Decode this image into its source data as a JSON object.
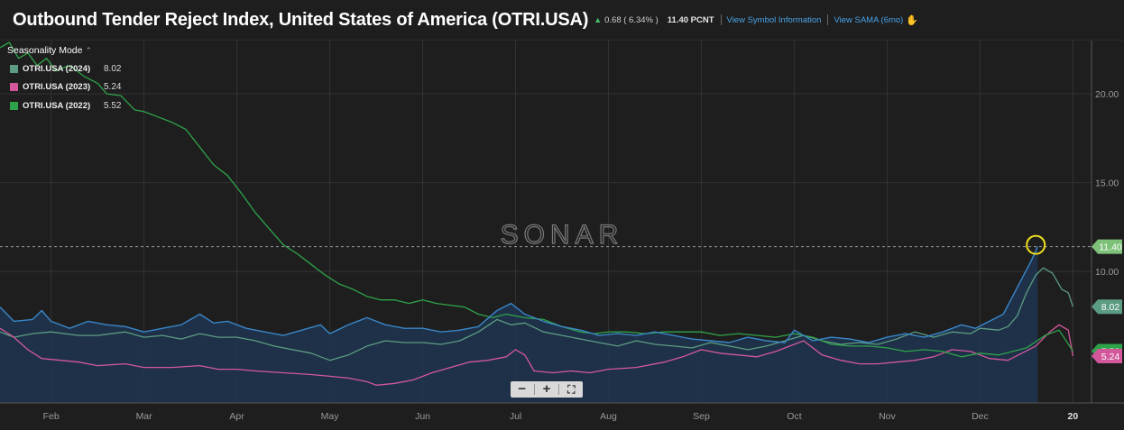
{
  "header": {
    "title": "Outbound Tender Reject Index, United States of America (OTRI.USA)",
    "change": "0.68 ( 6.34% )",
    "value": "11.40 PCNT",
    "link_symbol_info": "View Symbol Information",
    "link_sama": "View SAMA (6mo)"
  },
  "legend": {
    "mode_label": "Seasonality Mode",
    "items": [
      {
        "name": "OTRI.USA (2024)",
        "value": "8.02",
        "color": "#5c9c83"
      },
      {
        "name": "OTRI.USA (2023)",
        "value": "5.24",
        "color": "#d3589b"
      },
      {
        "name": "OTRI.USA (2022)",
        "value": "5.52",
        "color": "#2fa34a"
      }
    ]
  },
  "watermark": "SONAR",
  "zoom": {
    "minus": "−",
    "plus": "+",
    "fit": "⛶"
  },
  "colors": {
    "current": "#3a86c8",
    "area": "#1f3550",
    "bg": "#1e1e1e",
    "grid": "#3a3a3a",
    "highlight": "#f0e020"
  },
  "chart_data": {
    "type": "line",
    "title": "Outbound Tender Reject Index, United States of America (OTRI.USA)",
    "x_unit": "month index (0 = Jan 1, 12 = Jan 1 next year)",
    "xlim": [
      0.45,
      12.2
    ],
    "ylim": [
      2.6,
      23.0
    ],
    "x_ticks": [
      {
        "label": "Feb",
        "x": 1
      },
      {
        "label": "Mar",
        "x": 2
      },
      {
        "label": "Apr",
        "x": 3
      },
      {
        "label": "May",
        "x": 4
      },
      {
        "label": "Jun",
        "x": 5
      },
      {
        "label": "Jul",
        "x": 6
      },
      {
        "label": "Aug",
        "x": 7
      },
      {
        "label": "Sep",
        "x": 8
      },
      {
        "label": "Oct",
        "x": 9
      },
      {
        "label": "Nov",
        "x": 10
      },
      {
        "label": "Dec",
        "x": 11
      },
      {
        "label": "20",
        "x": 12
      }
    ],
    "y_ticks": [
      {
        "label": "10.00",
        "y": 10
      },
      {
        "label": "15.00",
        "y": 15
      },
      {
        "label": "20.00",
        "y": 20
      }
    ],
    "reference_line": {
      "y": 11.4,
      "label": "11.40"
    },
    "highlight_point": {
      "x": 11.6,
      "y": 11.4
    },
    "series": [
      {
        "name": "OTRI.USA (current)",
        "role": "current",
        "color": "#3a86c8",
        "area": true,
        "points": [
          [
            0.45,
            8.0
          ],
          [
            0.6,
            7.2
          ],
          [
            0.8,
            7.3
          ],
          [
            0.9,
            7.8
          ],
          [
            1.0,
            7.2
          ],
          [
            1.2,
            6.8
          ],
          [
            1.4,
            7.2
          ],
          [
            1.6,
            7.0
          ],
          [
            1.8,
            6.9
          ],
          [
            2.0,
            6.6
          ],
          [
            2.2,
            6.8
          ],
          [
            2.4,
            7.0
          ],
          [
            2.6,
            7.6
          ],
          [
            2.75,
            7.1
          ],
          [
            2.9,
            7.2
          ],
          [
            3.1,
            6.8
          ],
          [
            3.3,
            6.6
          ],
          [
            3.5,
            6.4
          ],
          [
            3.7,
            6.7
          ],
          [
            3.9,
            7.0
          ],
          [
            4.0,
            6.5
          ],
          [
            4.2,
            7.0
          ],
          [
            4.4,
            7.4
          ],
          [
            4.6,
            7.0
          ],
          [
            4.8,
            6.8
          ],
          [
            5.0,
            6.8
          ],
          [
            5.2,
            6.6
          ],
          [
            5.4,
            6.7
          ],
          [
            5.6,
            6.9
          ],
          [
            5.8,
            7.8
          ],
          [
            5.95,
            8.2
          ],
          [
            6.1,
            7.6
          ],
          [
            6.3,
            7.2
          ],
          [
            6.5,
            6.9
          ],
          [
            6.7,
            6.7
          ],
          [
            6.9,
            6.4
          ],
          [
            7.1,
            6.5
          ],
          [
            7.3,
            6.4
          ],
          [
            7.5,
            6.6
          ],
          [
            7.7,
            6.4
          ],
          [
            7.9,
            6.2
          ],
          [
            8.1,
            6.1
          ],
          [
            8.3,
            6.0
          ],
          [
            8.5,
            6.3
          ],
          [
            8.7,
            6.1
          ],
          [
            8.9,
            6.0
          ],
          [
            9.0,
            6.7
          ],
          [
            9.2,
            6.1
          ],
          [
            9.4,
            6.3
          ],
          [
            9.6,
            6.2
          ],
          [
            9.8,
            6.0
          ],
          [
            10.0,
            6.3
          ],
          [
            10.2,
            6.5
          ],
          [
            10.4,
            6.3
          ],
          [
            10.6,
            6.6
          ],
          [
            10.8,
            7.0
          ],
          [
            10.95,
            6.8
          ],
          [
            11.1,
            7.2
          ],
          [
            11.25,
            7.6
          ],
          [
            11.35,
            8.6
          ],
          [
            11.45,
            9.6
          ],
          [
            11.55,
            10.6
          ],
          [
            11.62,
            11.4
          ]
        ]
      },
      {
        "name": "OTRI.USA (2024)",
        "color": "#5c9c83",
        "points": [
          [
            0.45,
            6.6
          ],
          [
            0.6,
            6.3
          ],
          [
            0.8,
            6.5
          ],
          [
            1.0,
            6.6
          ],
          [
            1.3,
            6.4
          ],
          [
            1.5,
            6.4
          ],
          [
            1.8,
            6.6
          ],
          [
            2.0,
            6.3
          ],
          [
            2.2,
            6.4
          ],
          [
            2.4,
            6.2
          ],
          [
            2.6,
            6.5
          ],
          [
            2.8,
            6.3
          ],
          [
            3.0,
            6.3
          ],
          [
            3.2,
            6.1
          ],
          [
            3.4,
            5.8
          ],
          [
            3.6,
            5.6
          ],
          [
            3.8,
            5.4
          ],
          [
            4.0,
            5.0
          ],
          [
            4.2,
            5.3
          ],
          [
            4.4,
            5.8
          ],
          [
            4.6,
            6.1
          ],
          [
            4.8,
            6.0
          ],
          [
            5.0,
            6.0
          ],
          [
            5.2,
            5.9
          ],
          [
            5.4,
            6.1
          ],
          [
            5.6,
            6.6
          ],
          [
            5.8,
            7.3
          ],
          [
            5.95,
            7.0
          ],
          [
            6.1,
            7.1
          ],
          [
            6.3,
            6.6
          ],
          [
            6.5,
            6.4
          ],
          [
            6.7,
            6.2
          ],
          [
            6.9,
            6.0
          ],
          [
            7.1,
            5.8
          ],
          [
            7.3,
            6.1
          ],
          [
            7.5,
            5.9
          ],
          [
            7.7,
            5.8
          ],
          [
            7.9,
            5.7
          ],
          [
            8.1,
            6.0
          ],
          [
            8.3,
            5.8
          ],
          [
            8.5,
            5.6
          ],
          [
            8.7,
            5.8
          ],
          [
            8.9,
            6.1
          ],
          [
            9.1,
            6.4
          ],
          [
            9.3,
            6.1
          ],
          [
            9.5,
            5.9
          ],
          [
            9.7,
            6.0
          ],
          [
            9.9,
            5.9
          ],
          [
            10.1,
            6.2
          ],
          [
            10.3,
            6.6
          ],
          [
            10.5,
            6.3
          ],
          [
            10.7,
            6.6
          ],
          [
            10.9,
            6.5
          ],
          [
            11.0,
            6.8
          ],
          [
            11.2,
            6.7
          ],
          [
            11.3,
            6.9
          ],
          [
            11.4,
            7.5
          ],
          [
            11.5,
            8.8
          ],
          [
            11.6,
            9.8
          ],
          [
            11.68,
            10.2
          ],
          [
            11.78,
            9.9
          ],
          [
            11.88,
            9.0
          ],
          [
            11.95,
            8.8
          ],
          [
            12.0,
            8.02
          ]
        ]
      },
      {
        "name": "OTRI.USA (2023)",
        "color": "#d3589b",
        "points": [
          [
            0.45,
            6.8
          ],
          [
            0.6,
            6.3
          ],
          [
            0.75,
            5.6
          ],
          [
            0.9,
            5.1
          ],
          [
            1.1,
            5.0
          ],
          [
            1.3,
            4.9
          ],
          [
            1.5,
            4.7
          ],
          [
            1.8,
            4.8
          ],
          [
            2.0,
            4.6
          ],
          [
            2.3,
            4.6
          ],
          [
            2.6,
            4.7
          ],
          [
            2.8,
            4.5
          ],
          [
            3.0,
            4.5
          ],
          [
            3.2,
            4.4
          ],
          [
            3.5,
            4.3
          ],
          [
            3.8,
            4.2
          ],
          [
            4.0,
            4.1
          ],
          [
            4.2,
            4.0
          ],
          [
            4.4,
            3.8
          ],
          [
            4.5,
            3.6
          ],
          [
            4.7,
            3.7
          ],
          [
            4.9,
            3.9
          ],
          [
            5.1,
            4.3
          ],
          [
            5.3,
            4.6
          ],
          [
            5.5,
            4.9
          ],
          [
            5.7,
            5.0
          ],
          [
            5.9,
            5.2
          ],
          [
            6.0,
            5.6
          ],
          [
            6.1,
            5.3
          ],
          [
            6.2,
            4.4
          ],
          [
            6.4,
            4.3
          ],
          [
            6.6,
            4.4
          ],
          [
            6.8,
            4.3
          ],
          [
            7.0,
            4.5
          ],
          [
            7.3,
            4.6
          ],
          [
            7.6,
            4.9
          ],
          [
            7.8,
            5.2
          ],
          [
            8.0,
            5.6
          ],
          [
            8.2,
            5.4
          ],
          [
            8.4,
            5.3
          ],
          [
            8.6,
            5.2
          ],
          [
            8.8,
            5.5
          ],
          [
            9.0,
            5.9
          ],
          [
            9.1,
            6.1
          ],
          [
            9.3,
            5.3
          ],
          [
            9.5,
            5.0
          ],
          [
            9.7,
            4.8
          ],
          [
            9.9,
            4.8
          ],
          [
            10.1,
            4.9
          ],
          [
            10.3,
            5.0
          ],
          [
            10.5,
            5.2
          ],
          [
            10.7,
            5.6
          ],
          [
            10.9,
            5.5
          ],
          [
            11.1,
            5.1
          ],
          [
            11.3,
            5.0
          ],
          [
            11.45,
            5.4
          ],
          [
            11.6,
            5.8
          ],
          [
            11.75,
            6.6
          ],
          [
            11.85,
            7.0
          ],
          [
            11.95,
            6.7
          ],
          [
            12.0,
            5.24
          ]
        ]
      },
      {
        "name": "OTRI.USA (2022)",
        "color": "#2fa34a",
        "points": [
          [
            0.45,
            22.6
          ],
          [
            0.55,
            22.9
          ],
          [
            0.65,
            22.0
          ],
          [
            0.75,
            22.3
          ],
          [
            0.85,
            21.6
          ],
          [
            0.95,
            22.0
          ],
          [
            1.05,
            21.3
          ],
          [
            1.2,
            21.6
          ],
          [
            1.35,
            21.0
          ],
          [
            1.5,
            20.6
          ],
          [
            1.6,
            20.0
          ],
          [
            1.75,
            19.9
          ],
          [
            1.9,
            19.1
          ],
          [
            2.0,
            19.0
          ],
          [
            2.15,
            18.7
          ],
          [
            2.3,
            18.4
          ],
          [
            2.45,
            18.0
          ],
          [
            2.6,
            17.0
          ],
          [
            2.75,
            16.0
          ],
          [
            2.9,
            15.4
          ],
          [
            3.05,
            14.4
          ],
          [
            3.2,
            13.3
          ],
          [
            3.35,
            12.4
          ],
          [
            3.5,
            11.5
          ],
          [
            3.65,
            11.0
          ],
          [
            3.8,
            10.4
          ],
          [
            3.95,
            9.8
          ],
          [
            4.1,
            9.3
          ],
          [
            4.25,
            9.0
          ],
          [
            4.4,
            8.6
          ],
          [
            4.55,
            8.4
          ],
          [
            4.7,
            8.4
          ],
          [
            4.85,
            8.2
          ],
          [
            5.0,
            8.4
          ],
          [
            5.15,
            8.2
          ],
          [
            5.3,
            8.1
          ],
          [
            5.45,
            8.0
          ],
          [
            5.6,
            7.6
          ],
          [
            5.75,
            7.4
          ],
          [
            5.9,
            7.6
          ],
          [
            6.1,
            7.4
          ],
          [
            6.3,
            7.3
          ],
          [
            6.5,
            6.9
          ],
          [
            6.7,
            6.6
          ],
          [
            6.85,
            6.5
          ],
          [
            7.0,
            6.6
          ],
          [
            7.2,
            6.6
          ],
          [
            7.4,
            6.5
          ],
          [
            7.6,
            6.6
          ],
          [
            7.8,
            6.6
          ],
          [
            8.0,
            6.6
          ],
          [
            8.2,
            6.4
          ],
          [
            8.4,
            6.5
          ],
          [
            8.6,
            6.4
          ],
          [
            8.8,
            6.3
          ],
          [
            9.0,
            6.5
          ],
          [
            9.2,
            6.3
          ],
          [
            9.4,
            5.9
          ],
          [
            9.6,
            5.8
          ],
          [
            9.8,
            5.8
          ],
          [
            10.0,
            5.7
          ],
          [
            10.2,
            5.5
          ],
          [
            10.4,
            5.6
          ],
          [
            10.6,
            5.5
          ],
          [
            10.8,
            5.2
          ],
          [
            11.0,
            5.4
          ],
          [
            11.2,
            5.3
          ],
          [
            11.35,
            5.5
          ],
          [
            11.5,
            5.7
          ],
          [
            11.7,
            6.4
          ],
          [
            11.85,
            6.7
          ],
          [
            12.0,
            5.52
          ]
        ]
      }
    ]
  }
}
